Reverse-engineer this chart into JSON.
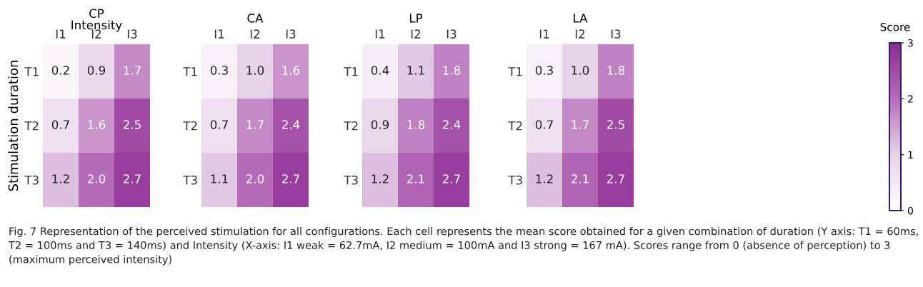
{
  "chart_data": [
    {
      "type": "heatmap",
      "title": "CP",
      "xlabel": "Intensity",
      "ylabel": "Stimulation duration",
      "categories": [
        "I1",
        "I2",
        "I3"
      ],
      "y_categories": [
        "T1",
        "T2",
        "T3"
      ],
      "data_labels": true,
      "cells": [
        [
          0.2,
          0.9,
          1.7
        ],
        [
          0.7,
          1.6,
          2.5
        ],
        [
          1.2,
          2.0,
          2.7
        ]
      ],
      "cell_labels": [
        [
          "0.2",
          "0.9",
          "1.7"
        ],
        [
          "0.7",
          "1.6",
          "2.5"
        ],
        [
          "1.2",
          "2.0",
          "2.7"
        ]
      ]
    },
    {
      "type": "heatmap",
      "title": "CA",
      "categories": [
        "I1",
        "I2",
        "I3"
      ],
      "y_categories": [
        "T1",
        "T2",
        "T3"
      ],
      "data_labels": true,
      "cells": [
        [
          0.3,
          1.0,
          1.6
        ],
        [
          0.7,
          1.7,
          2.4
        ],
        [
          1.1,
          2.0,
          2.7
        ]
      ],
      "cell_labels": [
        [
          "0.3",
          "1.0",
          "1.6"
        ],
        [
          "0.7",
          "1.7",
          "2.4"
        ],
        [
          "1.1",
          "2.0",
          "2.7"
        ]
      ]
    },
    {
      "type": "heatmap",
      "title": "LP",
      "categories": [
        "I1",
        "I2",
        "I3"
      ],
      "y_categories": [
        "T1",
        "T2",
        "T3"
      ],
      "data_labels": true,
      "cells": [
        [
          0.4,
          1.1,
          1.8
        ],
        [
          0.9,
          1.8,
          2.4
        ],
        [
          1.2,
          2.1,
          2.7
        ]
      ],
      "cell_labels": [
        [
          "0.4",
          "1.1",
          "1.8"
        ],
        [
          "0.9",
          "1.8",
          "2.4"
        ],
        [
          "1.2",
          "2.1",
          "2.7"
        ]
      ]
    },
    {
      "type": "heatmap",
      "title": "LA",
      "categories": [
        "I1",
        "I2",
        "I3"
      ],
      "y_categories": [
        "T1",
        "T2",
        "T3"
      ],
      "data_labels": true,
      "cells": [
        [
          0.3,
          1.0,
          1.8
        ],
        [
          0.7,
          1.7,
          2.5
        ],
        [
          1.2,
          2.1,
          2.7
        ]
      ],
      "cell_labels": [
        [
          "0.3",
          "1.0",
          "1.8"
        ],
        [
          "0.7",
          "1.7",
          "2.5"
        ],
        [
          "1.2",
          "2.1",
          "2.7"
        ]
      ],
      "clim": [
        0,
        3
      ],
      "cticks": [
        0,
        1,
        2,
        3
      ],
      "clabel": "Score",
      "annotations": [
        "Fig. 7 Representation of the perceived stimulation for all configurations. Each cell represents the mean score obtained for a given combination of duration (Y axis: T1 = 60ms, T2 = 100ms and T3 = 140ms) and Intensity (X-axis: I1 weak = 62.7mA, I2 medium = 100mA and I3 strong = 167 mA). Scores range from 0 (absence of perception) to 3 (maximum perceived intensity)"
      ]
    }
  ]
}
